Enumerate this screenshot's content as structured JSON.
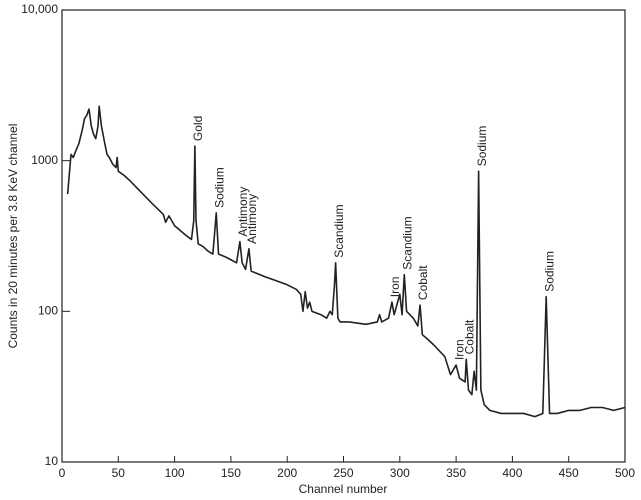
{
  "chart_data": {
    "type": "line",
    "xlabel": "Channel number",
    "ylabel": "Counts in 20 minutes per 3.8 KeV channel",
    "xlim": [
      0,
      500
    ],
    "xticks": [
      0,
      50,
      100,
      150,
      200,
      250,
      300,
      350,
      400,
      450,
      500
    ],
    "ylim": [
      10,
      10000
    ],
    "yticks": [
      10,
      100,
      1000,
      {
        "value": 10000,
        "label": "10,000"
      }
    ],
    "yscale": "log",
    "grid": false,
    "x": [
      5,
      7,
      8,
      10,
      12,
      15,
      18,
      20,
      22,
      24,
      26,
      28,
      30,
      32,
      33,
      35,
      38,
      40,
      42,
      45,
      48,
      49,
      50,
      55,
      60,
      70,
      80,
      90,
      92,
      95,
      100,
      110,
      115,
      117,
      118,
      119,
      121,
      125,
      130,
      134,
      137,
      139,
      145,
      150,
      155,
      158,
      160,
      163,
      166,
      168,
      180,
      190,
      200,
      208,
      212,
      214,
      216,
      218,
      220,
      222,
      230,
      235,
      238,
      240,
      242,
      243,
      245,
      247,
      255,
      270,
      280,
      282,
      284,
      290,
      293,
      295,
      300,
      302,
      304,
      306,
      312,
      316,
      318,
      320,
      325,
      330,
      340,
      345,
      350,
      353,
      358,
      359,
      361,
      364,
      366,
      368,
      370,
      372,
      375,
      380,
      390,
      400,
      410,
      420,
      427,
      430,
      433,
      440,
      450,
      460,
      470,
      480,
      490,
      500
    ],
    "series": [
      {
        "color": "#222222",
        "values": [
          600,
          900,
          1100,
          1050,
          1150,
          1300,
          1600,
          1900,
          2000,
          2200,
          1700,
          1500,
          1400,
          1700,
          2300,
          1700,
          1300,
          1100,
          1050,
          950,
          900,
          1050,
          850,
          800,
          740,
          620,
          520,
          440,
          390,
          430,
          370,
          320,
          300,
          400,
          1250,
          400,
          280,
          270,
          250,
          240,
          450,
          240,
          230,
          220,
          210,
          290,
          210,
          190,
          260,
          185,
          170,
          160,
          150,
          140,
          130,
          100,
          135,
          105,
          115,
          100,
          95,
          90,
          100,
          95,
          150,
          210,
          90,
          85,
          85,
          82,
          85,
          95,
          85,
          90,
          115,
          95,
          130,
          95,
          175,
          100,
          90,
          80,
          110,
          70,
          65,
          60,
          50,
          38,
          44,
          36,
          34,
          48,
          30,
          28,
          40,
          30,
          850,
          30,
          24,
          22,
          21,
          21,
          21,
          20,
          21,
          125,
          21,
          21,
          22,
          22,
          23,
          23,
          22,
          23
        ]
      }
    ],
    "annotations": [
      {
        "text": "Gold",
        "x": 118,
        "y": 1250
      },
      {
        "text": "Sodium",
        "x": 137,
        "y": 450
      },
      {
        "text": "Antimony",
        "x": 158,
        "y": 290
      },
      {
        "text": "Antimony",
        "x": 166,
        "y": 260
      },
      {
        "text": "Scandium",
        "x": 243,
        "y": 210
      },
      {
        "text": "Iron",
        "x": 293,
        "y": 115
      },
      {
        "text": "Scandium",
        "x": 304,
        "y": 175
      },
      {
        "text": "Cobalt",
        "x": 318,
        "y": 110
      },
      {
        "text": "Iron",
        "x": 350,
        "y": 44
      },
      {
        "text": "Cobalt",
        "x": 359,
        "y": 48
      },
      {
        "text": "Sodium",
        "x": 370,
        "y": 850
      },
      {
        "text": "Sodium",
        "x": 430,
        "y": 125
      }
    ]
  }
}
